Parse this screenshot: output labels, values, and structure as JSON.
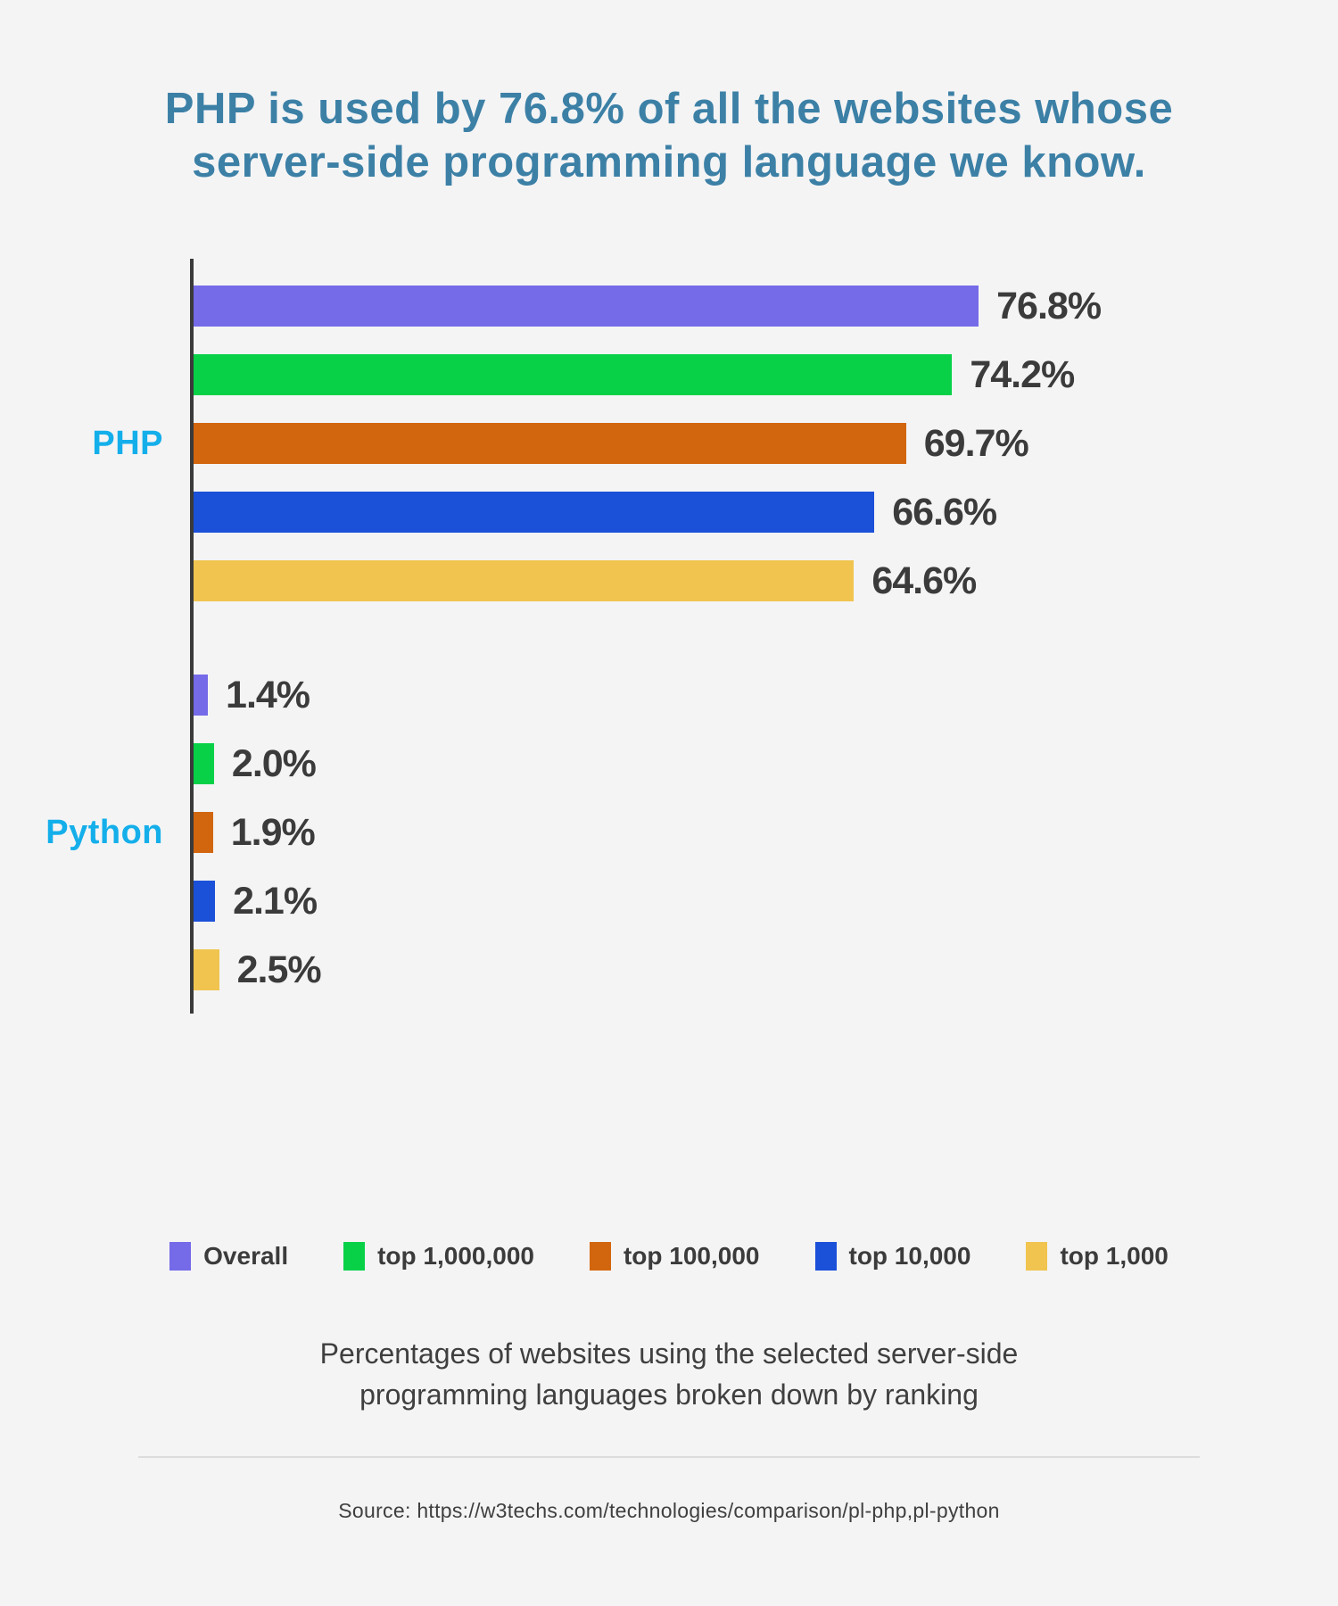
{
  "page": {
    "background_color": "#f4f4f5",
    "title": {
      "line1": "PHP is used by 76.8% of all the websites whose",
      "line2": "server-side programming language we know.",
      "color": "#3c80a6"
    },
    "caption": {
      "line1": "Percentages of websites using the selected server-side",
      "line2": "programming languages broken down by ranking"
    },
    "source": "Source: https://w3techs.com/technologies/comparison/pl-php,pl-python"
  },
  "chart_data": {
    "type": "bar",
    "orientation": "horizontal",
    "unit": "percent",
    "x_axis_max": 100,
    "grid": false,
    "legend_position": "bottom",
    "axis_color": "#3a3a3a",
    "group_label_color": "#14afea",
    "value_label_color": "#3b3b3b",
    "series": [
      {
        "name": "Overall",
        "color": "#756ae8"
      },
      {
        "name": "top 1,000,000",
        "color": "#08d148"
      },
      {
        "name": "top 100,000",
        "color": "#d2660f"
      },
      {
        "name": "top 10,000",
        "color": "#1b50d8"
      },
      {
        "name": "top 1,000",
        "color": "#f0c44f"
      }
    ],
    "groups": [
      {
        "label": "PHP",
        "values": [
          76.8,
          74.2,
          69.7,
          66.6,
          64.6
        ],
        "value_labels": [
          "76.8%",
          "74.2%",
          "69.7%",
          "66.6%",
          "64.6%"
        ]
      },
      {
        "label": "Python",
        "values": [
          1.4,
          2.0,
          1.9,
          2.1,
          2.5
        ],
        "value_labels": [
          "1.4%",
          "2.0%",
          "1.9%",
          "2.1%",
          "2.5%"
        ]
      }
    ]
  }
}
